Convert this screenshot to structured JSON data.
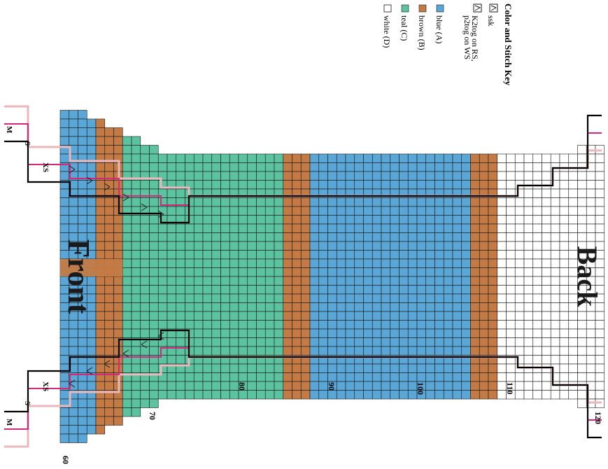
{
  "key": {
    "title": "Color and Stitch Key",
    "items": [
      {
        "kind": "stitch",
        "symbol": "ssk-symbol",
        "label": "ssk"
      },
      {
        "kind": "stitch",
        "symbol": "k2tog-symbol",
        "label_lines": [
          "K2tog on RS,",
          "p2tog on WS"
        ]
      },
      {
        "kind": "color",
        "color": "#5aa6d6",
        "label": "blue (A)"
      },
      {
        "kind": "color",
        "color": "#c47a45",
        "label": "brown (B)"
      },
      {
        "kind": "color",
        "color": "#5cc3a0",
        "label": "teal (C)"
      },
      {
        "kind": "color",
        "color": "#ffffff",
        "label": "white (D)"
      }
    ]
  },
  "panels": {
    "front_title": "Front",
    "back_title": "Back"
  },
  "row_numbers": [
    "60",
    "70",
    "80",
    "90",
    "100",
    "110",
    "120"
  ],
  "size_labels": [
    "XS",
    "S",
    "M"
  ],
  "colors": {
    "blue": "#5aa6d6",
    "brown": "#c47a45",
    "teal": "#5cc3a0",
    "white": "#ffffff",
    "grid_line": "#1a1a1a",
    "outline_xs": "#000000",
    "outline_s": "#d4287a",
    "outline_m": "#e8b8bc"
  }
}
